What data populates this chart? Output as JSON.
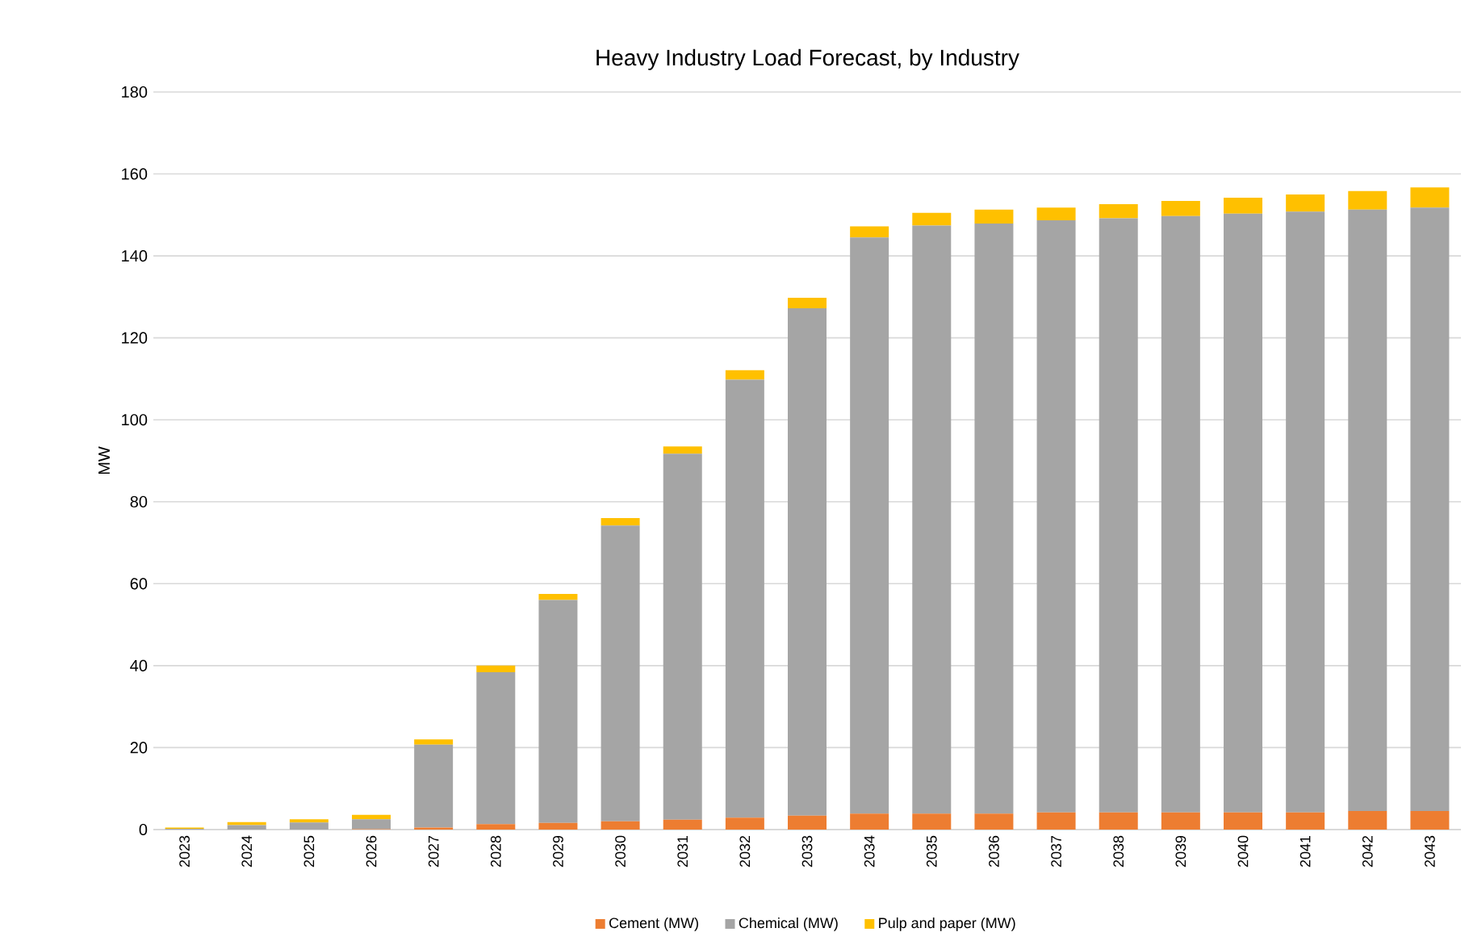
{
  "chart_data": {
    "type": "bar",
    "stacked": true,
    "title": "Heavy Industry Load Forecast, by Industry",
    "ylabel": "MW",
    "categories": [
      "2023",
      "2024",
      "2025",
      "2026",
      "2027",
      "2028",
      "2029",
      "2030",
      "2031",
      "2032",
      "2033",
      "2034",
      "2035",
      "2036",
      "2037",
      "2038",
      "2039",
      "2040",
      "2041",
      "2042",
      "2043"
    ],
    "series": [
      {
        "name": "Cement (MW)",
        "color": "#ed7d31",
        "values": [
          0,
          0,
          0,
          0.1,
          0.5,
          1.3,
          1.6,
          2.0,
          2.4,
          2.9,
          3.4,
          3.9,
          3.9,
          3.9,
          4.2,
          4.2,
          4.2,
          4.2,
          4.2,
          4.5,
          4.5
        ]
      },
      {
        "name": "Chemical (MW)",
        "color": "#a5a5a5",
        "values": [
          0.2,
          1.1,
          1.7,
          2.4,
          20.2,
          37.1,
          54.4,
          72.2,
          89.3,
          106.9,
          123.8,
          140.6,
          143.5,
          144.0,
          144.5,
          145.0,
          145.5,
          146.1,
          146.6,
          146.8,
          147.3
        ]
      },
      {
        "name": "Pulp and paper (MW)",
        "color": "#ffc000",
        "values": [
          0.3,
          0.7,
          0.8,
          1.1,
          1.3,
          1.6,
          1.5,
          1.8,
          1.8,
          2.3,
          2.6,
          2.7,
          3.1,
          3.4,
          3.1,
          3.4,
          3.7,
          3.9,
          4.2,
          4.5,
          4.9
        ]
      }
    ],
    "ylim": [
      0,
      180
    ],
    "yticks": [
      0,
      20,
      40,
      60,
      80,
      100,
      120,
      140,
      160,
      180
    ],
    "grid": "y",
    "legend": "bottom"
  }
}
